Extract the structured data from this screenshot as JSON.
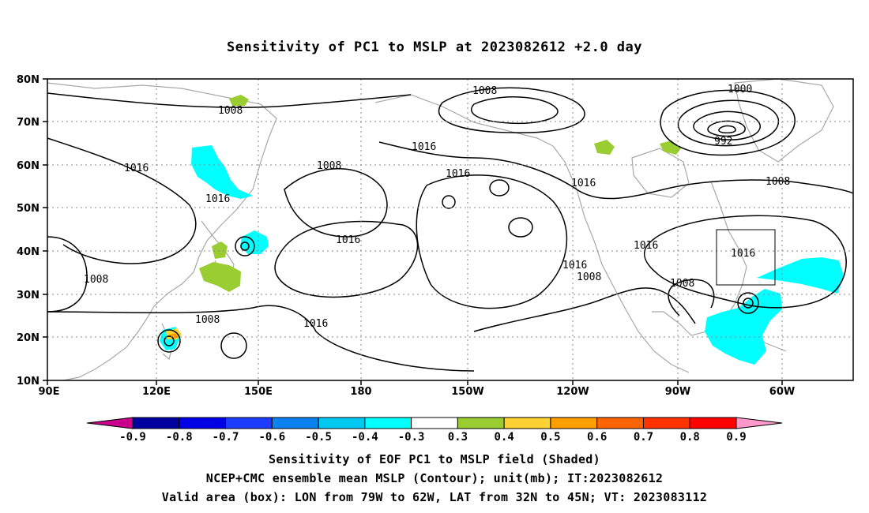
{
  "title": "Sensitivity of PC1 to MSLP at 2023082612 +2.0 day",
  "y_tick_labels": [
    "80N",
    "70N",
    "60N",
    "50N",
    "40N",
    "30N",
    "20N",
    "10N"
  ],
  "x_tick_labels": [
    "90E",
    "120E",
    "150E",
    "180",
    "150W",
    "120W",
    "90W",
    "60W"
  ],
  "contour_labels": [
    "1008",
    "1008",
    "1000",
    "992",
    "1016",
    "1016",
    "1008",
    "1016",
    "1016",
    "1016",
    "1008",
    "1008",
    "1016",
    "1016",
    "1008",
    "1016",
    "1016",
    "1008",
    "1008",
    "1016"
  ],
  "colorbar": {
    "labels": [
      "-0.9",
      "-0.8",
      "-0.7",
      "-0.6",
      "-0.5",
      "-0.4",
      "-0.3",
      "0.3",
      "0.4",
      "0.5",
      "0.6",
      "0.7",
      "0.8",
      "0.9"
    ],
    "colors": [
      "#c8008c",
      "#0000a0",
      "#0000e6",
      "#1e3cff",
      "#0a82f0",
      "#00c8f0",
      "#00ffff",
      "#ffffff",
      "#9acd32",
      "#ffd232",
      "#ffa000",
      "#ff6400",
      "#ff3200",
      "#ff0000",
      "#ff99cc"
    ]
  },
  "captions": [
    "Sensitivity of EOF PC1 to MSLP field (Shaded)",
    "NCEP+CMC ensemble mean MSLP (Contour); unit(mb); IT:2023082612",
    "Valid area (box): LON from 79W to 62W, LAT from 32N to 45N; VT: 2023083112"
  ],
  "map": {
    "lon_range": "90E-45W",
    "lat_range": [
      10,
      80
    ],
    "valid_box": {
      "lon": [
        "79W",
        "62W"
      ],
      "lat": [
        "32N",
        "45N"
      ]
    },
    "shading_colors": {
      "negative": "#00ffff",
      "positive_low": "#9acd32",
      "positive_mid": "#ffd232",
      "positive_high": "#ffa000"
    }
  }
}
